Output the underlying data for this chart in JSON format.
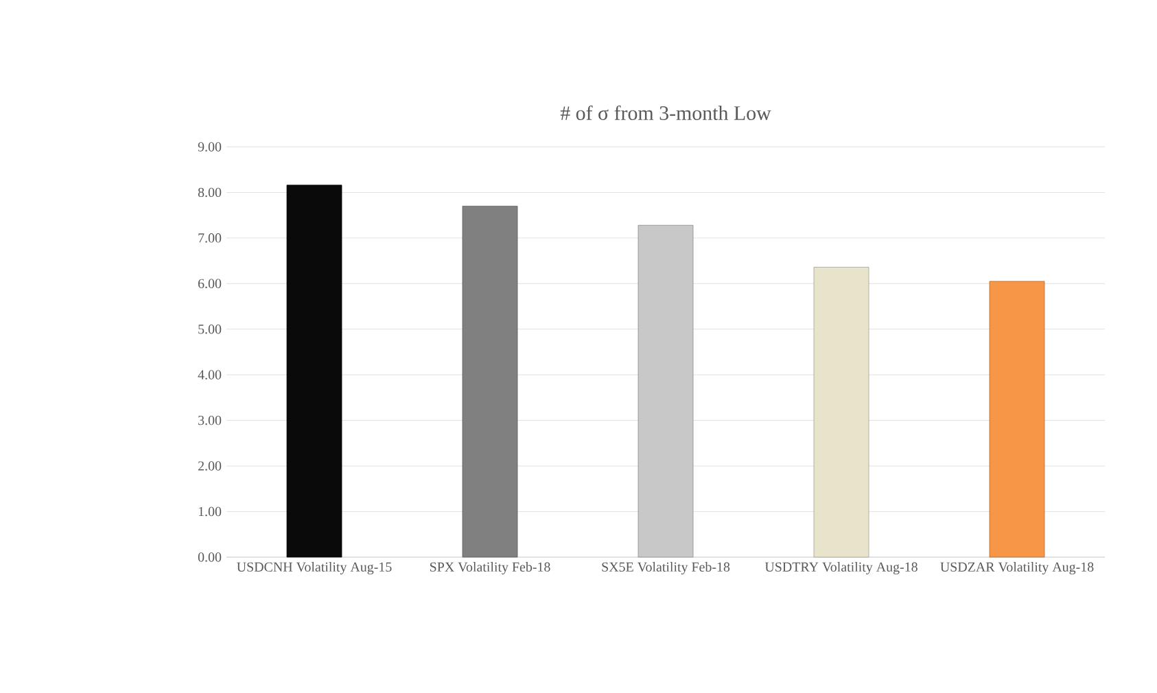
{
  "chart_data": {
    "type": "bar",
    "title": "# of σ from 3-month Low",
    "categories": [
      "USDCNH Volatility Aug-15",
      "SPX Volatility Feb-18",
      "SX5E Volatility Feb-18",
      "USDTRY Volatility Aug-18",
      "USDZAR Volatility Aug-18"
    ],
    "values": [
      8.16,
      7.7,
      7.28,
      6.36,
      6.05
    ],
    "colors": [
      "#0a0a0a",
      "#808080",
      "#c8c8c8",
      "#e8e4cc",
      "#f79646"
    ],
    "ylim": [
      0,
      9
    ],
    "yticks": [
      {
        "value": 0,
        "label": "0.00"
      },
      {
        "value": 1,
        "label": "1.00"
      },
      {
        "value": 2,
        "label": "2.00"
      },
      {
        "value": 3,
        "label": "3.00"
      },
      {
        "value": 4,
        "label": "4.00"
      },
      {
        "value": 5,
        "label": "5.00"
      },
      {
        "value": 6,
        "label": "6.00"
      },
      {
        "value": 7,
        "label": "7.00"
      },
      {
        "value": 8,
        "label": "8.00"
      },
      {
        "value": 9,
        "label": "9.00"
      }
    ],
    "grid": "y"
  }
}
